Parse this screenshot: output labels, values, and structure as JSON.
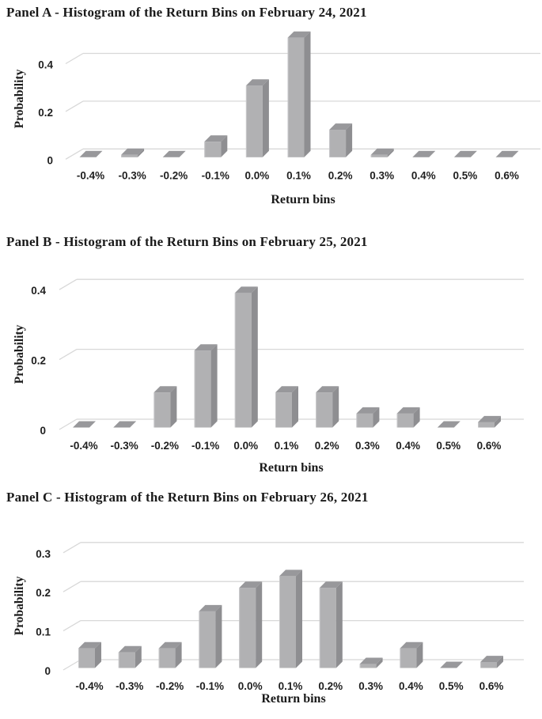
{
  "chart_data": [
    {
      "type": "bar",
      "style": "3d-column",
      "title": "Panel A - Histogram of the Return Bins on February 24, 2021",
      "xlabel": "Return bins",
      "ylabel": "Probability",
      "categories": [
        "-0.4%",
        "-0.3%",
        "-0.2%",
        "-0.1%",
        "0.0%",
        "0.1%",
        "0.2%",
        "0.3%",
        "0.4%",
        "0.5%",
        "0.6%"
      ],
      "values": [
        0,
        0.01,
        0,
        0.065,
        0.3,
        0.5,
        0.115,
        0.01,
        0,
        0,
        0
      ],
      "yticks": [
        0,
        0.2,
        0.4
      ],
      "ytick_labels": [
        "0",
        "0.2",
        "0.4"
      ],
      "ylim": [
        0,
        0.5
      ],
      "grid": true,
      "legend": "none"
    },
    {
      "type": "bar",
      "style": "3d-column",
      "title": "Panel B - Histogram of the Return Bins on February 25, 2021",
      "xlabel": "Return bins",
      "ylabel": "Probability",
      "categories": [
        "-0.4%",
        "-0.3%",
        "-0.2%",
        "-0.1%",
        "0.0%",
        "0.1%",
        "0.2%",
        "0.3%",
        "0.4%",
        "0.5%",
        "0.6%"
      ],
      "values": [
        0,
        0,
        0.1,
        0.22,
        0.385,
        0.1,
        0.1,
        0.04,
        0.04,
        0,
        0.015
      ],
      "yticks": [
        0,
        0.2,
        0.4
      ],
      "ytick_labels": [
        "0",
        "0.2",
        "0.4"
      ],
      "ylim": [
        0,
        0.43
      ],
      "grid": true,
      "legend": "none"
    },
    {
      "type": "bar",
      "style": "3d-column",
      "title": "Panel C - Histogram of the Return Bins on February 26, 2021",
      "xlabel": "Return bins",
      "ylabel": "Probability",
      "categories": [
        "-0.4%",
        "-0.3%",
        "-0.2%",
        "-0.1%",
        "0.0%",
        "0.1%",
        "0.2%",
        "0.3%",
        "0.4%",
        "0.5%",
        "0.6%"
      ],
      "values": [
        0.05,
        0.04,
        0.05,
        0.145,
        0.205,
        0.235,
        0.205,
        0.01,
        0.05,
        0,
        0.015
      ],
      "yticks": [
        0,
        0.1,
        0.2,
        0.3
      ],
      "ytick_labels": [
        "0",
        "0.1",
        "0.2",
        "0.3"
      ],
      "ylim": [
        0,
        0.32
      ],
      "grid": true,
      "legend": "none"
    }
  ],
  "colors": {
    "background": "#ffffff",
    "bar_front": "#b1b1b3",
    "bar_top": "#98989b",
    "bar_side": "#8e8e91",
    "bar_highlight": "#c6c6c8",
    "gridline": "#d8d8d8",
    "text": "#1f1f1f",
    "title_text": "#1a1a1a"
  }
}
